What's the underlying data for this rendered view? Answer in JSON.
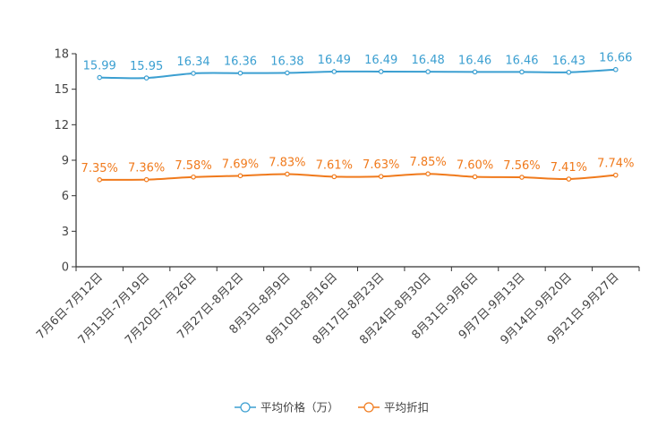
{
  "chart_data": {
    "type": "line",
    "categories": [
      "7月6日-7月12日",
      "7月13日-7月19日",
      "7月20日-7月26日",
      "7月27日-8月2日",
      "8月3日-8月9日",
      "8月10日-8月16日",
      "8月17日-8月23日",
      "8月24日-8月30日",
      "8月31日-9月6日",
      "9月7日-9月13日",
      "9月14日-9月20日",
      "9月21日-9月27日"
    ],
    "ylim": [
      0,
      18
    ],
    "yticks": [
      0,
      3,
      6,
      9,
      12,
      15,
      18
    ],
    "ytick_labels": [
      "0",
      "3",
      "6",
      "9",
      "12",
      "15",
      "18"
    ],
    "series": [
      {
        "name": "平均价格（万）",
        "color": "#3b9fd1",
        "values": [
          15.99,
          15.95,
          16.34,
          16.36,
          16.38,
          16.49,
          16.49,
          16.48,
          16.46,
          16.46,
          16.43,
          16.66
        ],
        "labels": [
          "15.99",
          "15.95",
          "16.34",
          "16.36",
          "16.38",
          "16.49",
          "16.49",
          "16.48",
          "16.46",
          "16.46",
          "16.43",
          "16.66"
        ]
      },
      {
        "name": "平均折扣",
        "color": "#f07a1c",
        "values": [
          7.35,
          7.36,
          7.58,
          7.69,
          7.83,
          7.61,
          7.63,
          7.85,
          7.6,
          7.56,
          7.41,
          7.74
        ],
        "labels": [
          "7.35%",
          "7.36%",
          "7.58%",
          "7.69%",
          "7.83%",
          "7.61%",
          "7.63%",
          "7.85%",
          "7.60%",
          "7.56%",
          "7.41%",
          "7.74%"
        ]
      }
    ],
    "legend_position": "bottom-center",
    "grid": false
  }
}
